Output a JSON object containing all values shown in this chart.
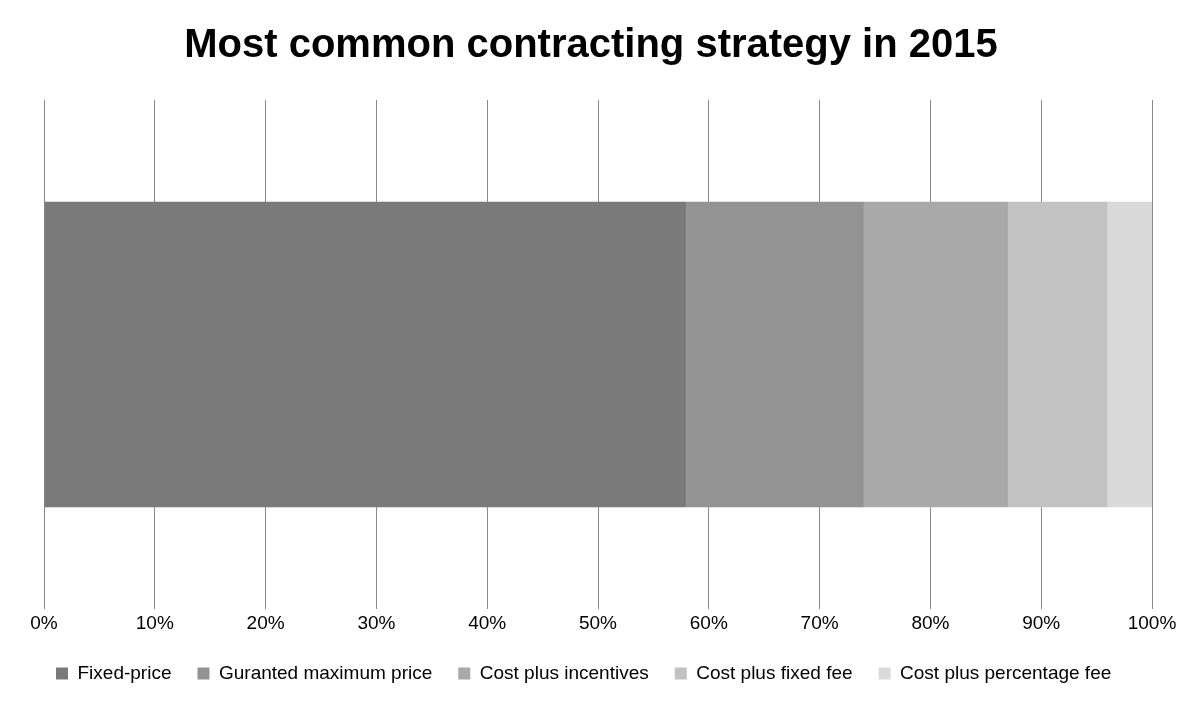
{
  "chart_data": {
    "type": "bar",
    "title": "Most common contracting strategy in 2015",
    "orientation": "horizontal",
    "stacked": true,
    "categories": [
      null
    ],
    "series": [
      {
        "name": "Fixed-price",
        "color": "#7a7a7a",
        "values": [
          58
        ]
      },
      {
        "name": "Guranted maximum price",
        "color": "#939393",
        "values": [
          16
        ]
      },
      {
        "name": "Cost plus incentives",
        "color": "#a9a9a9",
        "values": [
          13
        ]
      },
      {
        "name": "Cost plus fixed fee",
        "color": "#c2c2c2",
        "values": [
          9
        ]
      },
      {
        "name": "Cost plus percentage fee",
        "color": "#dadada",
        "values": [
          4
        ]
      }
    ],
    "xlim": [
      0,
      100
    ],
    "xticks": [
      {
        "value": 0,
        "label": "0%"
      },
      {
        "value": 10,
        "label": "10%"
      },
      {
        "value": 20,
        "label": "20%"
      },
      {
        "value": 30,
        "label": "30%"
      },
      {
        "value": 40,
        "label": "40%"
      },
      {
        "value": 50,
        "label": "50%"
      },
      {
        "value": 60,
        "label": "60%"
      },
      {
        "value": 70,
        "label": "70%"
      },
      {
        "value": 80,
        "label": "80%"
      },
      {
        "value": 90,
        "label": "90%"
      },
      {
        "value": 100,
        "label": "100%"
      }
    ],
    "grid": "x",
    "legend": "bottom"
  }
}
